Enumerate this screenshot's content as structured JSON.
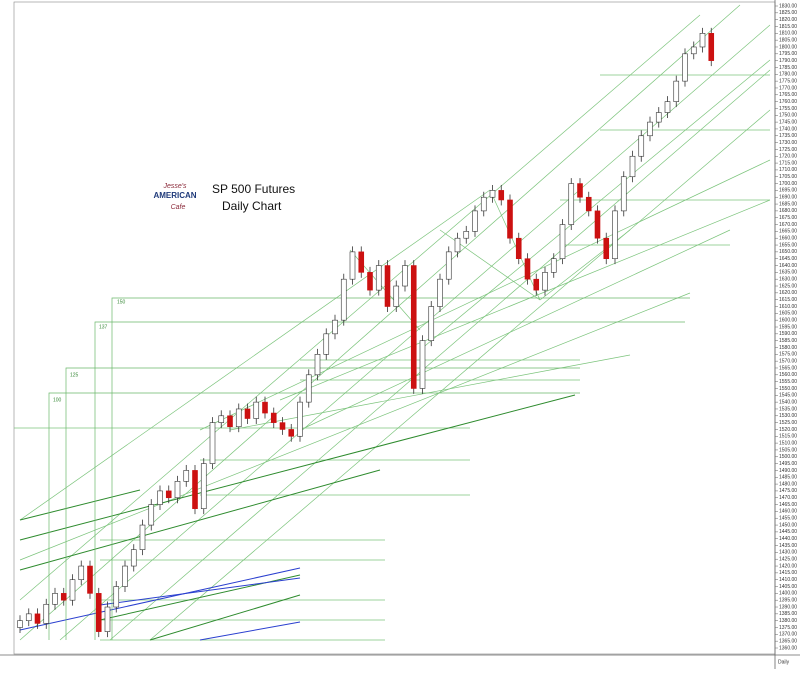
{
  "chart_data": {
    "type": "candlestick",
    "title": "SP 500 Futures",
    "subtitle": "Daily Chart",
    "timeframe_label": "Daily",
    "logo": {
      "top": "Jesse's",
      "middle": "AMERICAN",
      "bottom": "Cafe"
    },
    "box_labels": [
      "100",
      "125",
      "137",
      "150"
    ],
    "up_color": "#ffffff",
    "down_color": "#cc1111",
    "wick_color": "#333333",
    "ylim": [
      1360,
      1830
    ],
    "open": [
      1375,
      1380,
      1385,
      1378,
      1392,
      1400,
      1395,
      1410,
      1420,
      1400,
      1372,
      1390,
      1405,
      1420,
      1432,
      1450,
      1465,
      1475,
      1470,
      1482,
      1490,
      1462,
      1495,
      1525,
      1530,
      1522,
      1535,
      1528,
      1540,
      1532,
      1525,
      1520,
      1515,
      1540,
      1560,
      1575,
      1590,
      1600,
      1630,
      1650,
      1635,
      1622,
      1640,
      1610,
      1625,
      1640,
      1550,
      1585,
      1610,
      1630,
      1650,
      1660,
      1665,
      1680,
      1690,
      1695,
      1688,
      1660,
      1645,
      1630,
      1622,
      1635,
      1645,
      1670,
      1700,
      1690,
      1680,
      1660,
      1645,
      1680,
      1705,
      1720,
      1735,
      1745,
      1752,
      1760,
      1775,
      1795,
      1800,
      1810
    ],
    "high": [
      1384,
      1389,
      1389,
      1396,
      1404,
      1404,
      1414,
      1424,
      1424,
      1404,
      1394,
      1409,
      1424,
      1436,
      1454,
      1469,
      1479,
      1479,
      1486,
      1494,
      1494,
      1499,
      1529,
      1534,
      1534,
      1539,
      1539,
      1544,
      1544,
      1536,
      1529,
      1524,
      1544,
      1564,
      1579,
      1594,
      1604,
      1634,
      1654,
      1654,
      1639,
      1644,
      1644,
      1629,
      1644,
      1644,
      1589,
      1614,
      1634,
      1654,
      1664,
      1669,
      1684,
      1694,
      1699,
      1699,
      1692,
      1664,
      1649,
      1634,
      1639,
      1649,
      1674,
      1704,
      1704,
      1694,
      1684,
      1664,
      1684,
      1709,
      1724,
      1739,
      1749,
      1756,
      1764,
      1779,
      1799,
      1804,
      1814,
      1814
    ],
    "low": [
      1371,
      1376,
      1374,
      1374,
      1388,
      1391,
      1391,
      1406,
      1396,
      1368,
      1368,
      1386,
      1401,
      1416,
      1428,
      1446,
      1461,
      1466,
      1466,
      1478,
      1458,
      1458,
      1491,
      1521,
      1518,
      1518,
      1524,
      1524,
      1528,
      1521,
      1516,
      1511,
      1511,
      1536,
      1556,
      1571,
      1586,
      1596,
      1626,
      1631,
      1618,
      1618,
      1606,
      1606,
      1621,
      1546,
      1546,
      1581,
      1606,
      1626,
      1646,
      1656,
      1661,
      1676,
      1686,
      1684,
      1656,
      1641,
      1626,
      1618,
      1618,
      1631,
      1641,
      1666,
      1686,
      1676,
      1656,
      1641,
      1641,
      1676,
      1701,
      1716,
      1731,
      1741,
      1748,
      1756,
      1771,
      1791,
      1796,
      1786
    ],
    "close": [
      1380,
      1385,
      1378,
      1392,
      1400,
      1395,
      1410,
      1420,
      1400,
      1372,
      1390,
      1405,
      1420,
      1432,
      1450,
      1465,
      1475,
      1470,
      1482,
      1490,
      1462,
      1495,
      1525,
      1530,
      1522,
      1535,
      1528,
      1540,
      1532,
      1525,
      1520,
      1515,
      1540,
      1560,
      1575,
      1590,
      1600,
      1630,
      1650,
      1635,
      1622,
      1640,
      1610,
      1625,
      1640,
      1550,
      1585,
      1610,
      1630,
      1650,
      1660,
      1665,
      1680,
      1690,
      1695,
      1688,
      1660,
      1645,
      1630,
      1622,
      1635,
      1645,
      1670,
      1700,
      1690,
      1680,
      1660,
      1645,
      1680,
      1705,
      1720,
      1735,
      1745,
      1752,
      1760,
      1775,
      1795,
      1800,
      1810,
      1790
    ],
    "yticks": [
      {
        "value": 1830,
        "label": "1830.00"
      },
      {
        "value": 1825,
        "label": "1825.00"
      },
      {
        "value": 1820,
        "label": "1820.00"
      },
      {
        "value": 1815,
        "label": "1815.00"
      },
      {
        "value": 1810,
        "label": "1810.00"
      },
      {
        "value": 1805,
        "label": "1805.00"
      },
      {
        "value": 1800,
        "label": "1800.00"
      },
      {
        "value": 1795,
        "label": "1795.00"
      },
      {
        "value": 1790,
        "label": "1790.00"
      },
      {
        "value": 1785,
        "label": "1785.00"
      },
      {
        "value": 1780,
        "label": "1780.00"
      },
      {
        "value": 1775,
        "label": "1775.00"
      },
      {
        "value": 1770,
        "label": "1770.00"
      },
      {
        "value": 1765,
        "label": "1765.00"
      },
      {
        "value": 1760,
        "label": "1760.00"
      },
      {
        "value": 1755,
        "label": "1755.00"
      },
      {
        "value": 1750,
        "label": "1750.00"
      },
      {
        "value": 1745,
        "label": "1745.00"
      },
      {
        "value": 1740,
        "label": "1740.00"
      },
      {
        "value": 1735,
        "label": "1735.00"
      },
      {
        "value": 1730,
        "label": "1730.00"
      },
      {
        "value": 1725,
        "label": "1725.00"
      },
      {
        "value": 1720,
        "label": "1720.00"
      },
      {
        "value": 1715,
        "label": "1715.00"
      },
      {
        "value": 1710,
        "label": "1710.00"
      },
      {
        "value": 1705,
        "label": "1705.00"
      },
      {
        "value": 1700,
        "label": "1700.00"
      },
      {
        "value": 1695,
        "label": "1695.00"
      },
      {
        "value": 1690,
        "label": "1690.00"
      },
      {
        "value": 1685,
        "label": "1685.00"
      },
      {
        "value": 1680,
        "label": "1680.00"
      },
      {
        "value": 1675,
        "label": "1675.00"
      },
      {
        "value": 1670,
        "label": "1670.00"
      },
      {
        "value": 1665,
        "label": "1665.00"
      },
      {
        "value": 1660,
        "label": "1660.00"
      },
      {
        "value": 1655,
        "label": "1655.00"
      },
      {
        "value": 1650,
        "label": "1650.00"
      },
      {
        "value": 1645,
        "label": "1645.00"
      },
      {
        "value": 1640,
        "label": "1640.00"
      },
      {
        "value": 1635,
        "label": "1635.00"
      },
      {
        "value": 1630,
        "label": "1630.00"
      },
      {
        "value": 1625,
        "label": "1625.00"
      },
      {
        "value": 1620,
        "label": "1620.00"
      },
      {
        "value": 1615,
        "label": "1615.00"
      },
      {
        "value": 1610,
        "label": "1610.00"
      },
      {
        "value": 1605,
        "label": "1605.00"
      },
      {
        "value": 1600,
        "label": "1600.00"
      },
      {
        "value": 1595,
        "label": "1595.00"
      },
      {
        "value": 1590,
        "label": "1590.00"
      },
      {
        "value": 1585,
        "label": "1585.00"
      },
      {
        "value": 1580,
        "label": "1580.00"
      },
      {
        "value": 1575,
        "label": "1575.00"
      },
      {
        "value": 1570,
        "label": "1570.00"
      },
      {
        "value": 1565,
        "label": "1565.00"
      },
      {
        "value": 1560,
        "label": "1560.00"
      },
      {
        "value": 1555,
        "label": "1555.00"
      },
      {
        "value": 1550,
        "label": "1550.00"
      },
      {
        "value": 1545,
        "label": "1545.00"
      },
      {
        "value": 1540,
        "label": "1540.00"
      },
      {
        "value": 1535,
        "label": "1535.00"
      },
      {
        "value": 1530,
        "label": "1530.00"
      },
      {
        "value": 1525,
        "label": "1525.00"
      },
      {
        "value": 1520,
        "label": "1520.00"
      },
      {
        "value": 1515,
        "label": "1515.00"
      },
      {
        "value": 1510,
        "label": "1510.00"
      },
      {
        "value": 1505,
        "label": "1505.00"
      },
      {
        "value": 1500,
        "label": "1500.00"
      },
      {
        "value": 1495,
        "label": "1495.00"
      },
      {
        "value": 1490,
        "label": "1490.00"
      },
      {
        "value": 1485,
        "label": "1485.00"
      },
      {
        "value": 1480,
        "label": "1480.00"
      },
      {
        "value": 1475,
        "label": "1475.00"
      },
      {
        "value": 1470,
        "label": "1470.00"
      },
      {
        "value": 1465,
        "label": "1465.00"
      },
      {
        "value": 1460,
        "label": "1460.00"
      },
      {
        "value": 1455,
        "label": "1455.00"
      },
      {
        "value": 1450,
        "label": "1450.00"
      },
      {
        "value": 1445,
        "label": "1445.00"
      },
      {
        "value": 1440,
        "label": "1440.00"
      },
      {
        "value": 1435,
        "label": "1435.00"
      },
      {
        "value": 1430,
        "label": "1430.00"
      },
      {
        "value": 1425,
        "label": "1425.00"
      },
      {
        "value": 1420,
        "label": "1420.00"
      },
      {
        "value": 1415,
        "label": "1415.00"
      },
      {
        "value": 1410,
        "label": "1410.00"
      },
      {
        "value": 1405,
        "label": "1405.00"
      },
      {
        "value": 1400,
        "label": "1400.00"
      },
      {
        "value": 1395,
        "label": "1395.00"
      },
      {
        "value": 1390,
        "label": "1390.00"
      },
      {
        "value": 1385,
        "label": "1385.00"
      },
      {
        "value": 1380,
        "label": "1380.00"
      },
      {
        "value": 1375,
        "label": "1375.00"
      },
      {
        "value": 1370,
        "label": "1370.00"
      },
      {
        "value": 1365,
        "label": "1365.00"
      },
      {
        "value": 1360,
        "label": "1360.00"
      }
    ]
  }
}
